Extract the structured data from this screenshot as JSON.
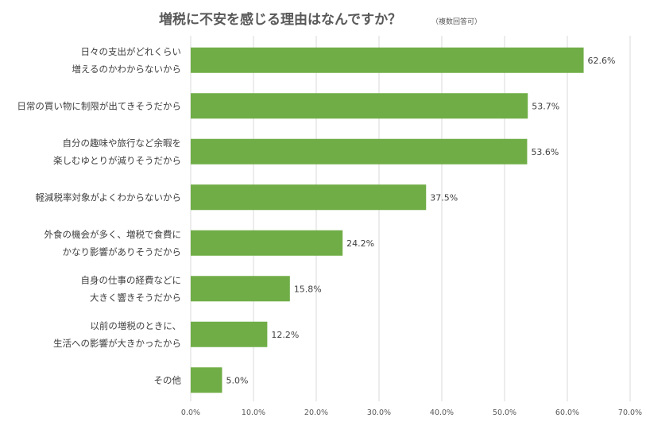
{
  "chart_data": {
    "type": "bar",
    "orientation": "horizontal",
    "title": "増税に不安を感じる理由はなんですか？",
    "subtitle": "（複数回答可）",
    "categories": [
      [
        "日々の支出がどれくらい",
        "増えるのかわからないから"
      ],
      [
        "日常の買い物に制限が出てきそうだから"
      ],
      [
        "自分の趣味や旅行など余暇を",
        "楽しむゆとりが減りそうだから"
      ],
      [
        "軽減税率対象がよくわからないから"
      ],
      [
        "外食の機会が多く、増税で食費に",
        "かなり影響がありそうだから"
      ],
      [
        "自身の仕事の経費などに",
        "大きく響きそうだから"
      ],
      [
        "以前の増税のときに、",
        "生活への影響が大きかったから"
      ],
      [
        "その他"
      ]
    ],
    "values": [
      62.6,
      53.7,
      53.6,
      37.5,
      24.2,
      15.8,
      12.2,
      5.0
    ],
    "data_labels": [
      "62.6%",
      "53.7%",
      "53.6%",
      "37.5%",
      "24.2%",
      "15.8%",
      "12.2%",
      "5.0%"
    ],
    "xlim": [
      0,
      70
    ],
    "x_ticks": [
      "0.0%",
      "10.0%",
      "20.0%",
      "30.0%",
      "40.0%",
      "50.0%",
      "60.0%",
      "70.0%"
    ],
    "grid": true,
    "legend": "none",
    "bar_color": "#70ad47"
  }
}
